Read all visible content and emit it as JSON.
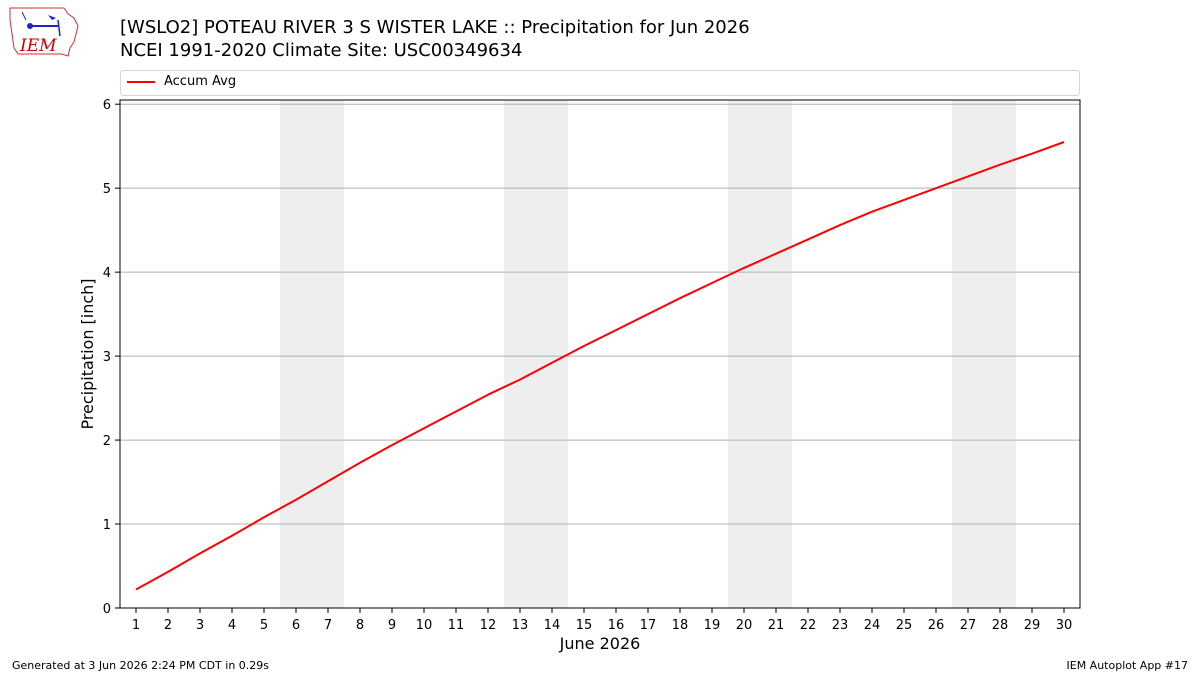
{
  "header": {
    "title_line1": "[WSLO2] POTEAU RIVER 3 S WISTER LAKE :: Precipitation for Jun 2026",
    "title_line2": "NCEI 1991-2020 Climate Site: USC00349634"
  },
  "logo": {
    "text": "IEM",
    "icon": "iem-iowa-logo-icon",
    "color": "#cc0000"
  },
  "legend": {
    "entries": [
      {
        "label": "Accum Avg",
        "color": "#ff0000"
      }
    ],
    "placement": "top"
  },
  "footer": {
    "left": "Generated at 3 Jun 2026 2:24 PM CDT in 0.29s",
    "right": "IEM Autoplot App #17"
  },
  "chart_data": {
    "type": "line",
    "title": "[WSLO2] POTEAU RIVER 3 S WISTER LAKE :: Precipitation for Jun 2026",
    "xlabel": "June 2026",
    "ylabel": "Precipitation [inch]",
    "x": [
      1,
      2,
      3,
      4,
      5,
      6,
      7,
      8,
      9,
      10,
      11,
      12,
      13,
      14,
      15,
      16,
      17,
      18,
      19,
      20,
      21,
      22,
      23,
      24,
      25,
      26,
      27,
      28,
      29,
      30
    ],
    "xticks": [
      "1",
      "2",
      "3",
      "4",
      "5",
      "6",
      "7",
      "8",
      "9",
      "10",
      "11",
      "12",
      "13",
      "14",
      "15",
      "16",
      "17",
      "18",
      "19",
      "20",
      "21",
      "22",
      "23",
      "24",
      "25",
      "26",
      "27",
      "28",
      "29",
      "30"
    ],
    "xlim": [
      0.5,
      30.5
    ],
    "ylim": [
      0,
      6.05
    ],
    "yticks": [
      "0",
      "1",
      "2",
      "3",
      "4",
      "5",
      "6"
    ],
    "grid": "horizontal",
    "weekend_shading": [
      [
        5.5,
        7.5
      ],
      [
        12.5,
        14.5
      ],
      [
        19.5,
        21.5
      ],
      [
        26.5,
        28.5
      ]
    ],
    "shading_color": "#eeeeee",
    "series": [
      {
        "name": "Accum Avg",
        "color": "#ff0000",
        "values": [
          0.22,
          0.43,
          0.65,
          0.86,
          1.08,
          1.29,
          1.51,
          1.73,
          1.94,
          2.14,
          2.34,
          2.54,
          2.72,
          2.92,
          3.12,
          3.31,
          3.5,
          3.69,
          3.87,
          4.05,
          4.22,
          4.39,
          4.56,
          4.72,
          4.86,
          5.0,
          5.14,
          5.28,
          5.41,
          5.55
        ]
      }
    ]
  }
}
